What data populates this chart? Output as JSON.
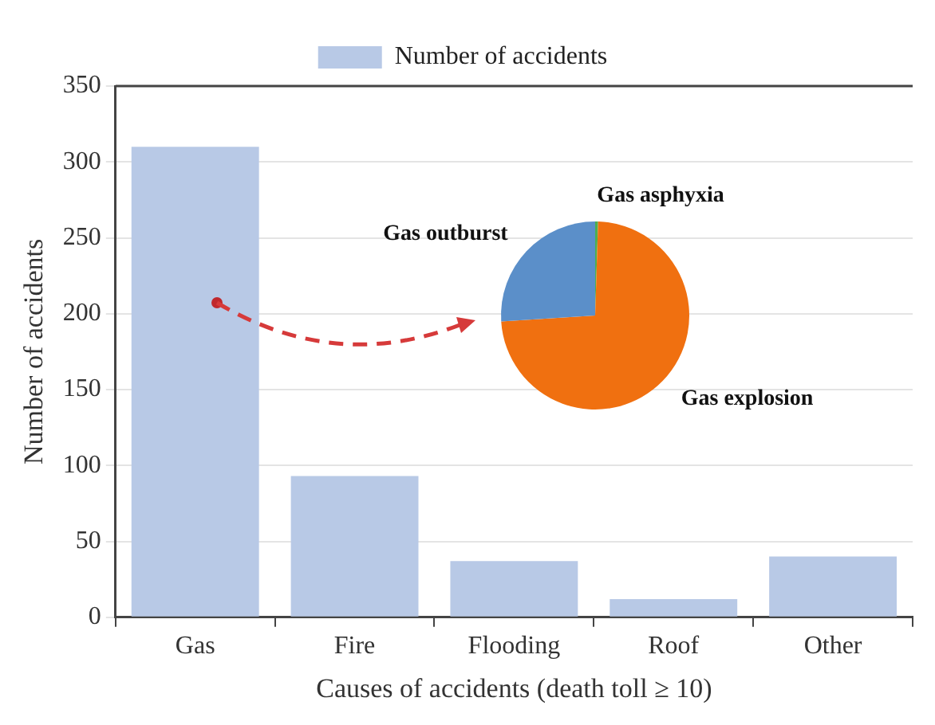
{
  "chart_data": [
    {
      "type": "bar",
      "xlabel": "Causes of accidents (death toll ≥ 10)",
      "ylabel": "Number of accidents",
      "categories": [
        "Gas",
        "Fire",
        "Flooding",
        "Roof",
        "Other"
      ],
      "series": [
        {
          "name": "Number of accidents",
          "color": "#b8c9e6",
          "values": [
            310,
            93,
            37,
            12,
            40
          ]
        }
      ],
      "ylim": [
        0,
        350
      ],
      "yticks": [
        0,
        50,
        100,
        150,
        200,
        250,
        300,
        350
      ],
      "grid": "y",
      "legend": "top"
    },
    {
      "type": "pie",
      "categories": [
        "Gas asphyxia",
        "Gas explosion",
        "Gas outburst"
      ],
      "values": [
        0.5,
        73.5,
        26
      ],
      "colors": [
        "#4caf50",
        "#f07010",
        "#5b8fc9"
      ],
      "legend": false
    }
  ]
}
